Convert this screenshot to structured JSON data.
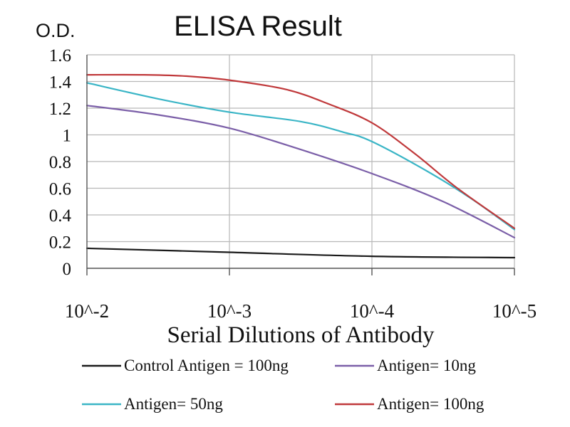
{
  "chart_data": {
    "type": "line",
    "title": "ELISA Result",
    "ylabel": "O.D.",
    "xlabel": "Serial Dilutions of Antibody",
    "x": [
      "10^-2",
      "10^-3",
      "10^-4",
      "10^-5"
    ],
    "x_scale": "log",
    "ylim": [
      0,
      1.6
    ],
    "yticks": [
      0,
      0.2,
      0.4,
      0.6,
      0.8,
      1,
      1.2,
      1.4,
      1.6
    ],
    "grid": true,
    "legend_position": "bottom",
    "series": [
      {
        "name": "Control Antigen = 100ng",
        "color": "#1a1a1a",
        "points": [
          [
            0,
            0.15
          ],
          [
            1,
            0.12
          ],
          [
            2,
            0.09
          ],
          [
            3,
            0.08
          ]
        ]
      },
      {
        "name": "Antigen= 10ng",
        "color": "#7b5fa8",
        "points": [
          [
            0,
            1.22
          ],
          [
            0.5,
            1.15
          ],
          [
            1,
            1.05
          ],
          [
            1.5,
            0.89
          ],
          [
            2,
            0.71
          ],
          [
            2.5,
            0.5
          ],
          [
            3,
            0.23
          ]
        ]
      },
      {
        "name": "Antigen= 50ng",
        "color": "#3ab5c6",
        "points": [
          [
            0,
            1.39
          ],
          [
            0.5,
            1.27
          ],
          [
            1,
            1.17
          ],
          [
            1.5,
            1.1
          ],
          [
            1.8,
            1.02
          ],
          [
            2,
            0.95
          ],
          [
            2.4,
            0.72
          ],
          [
            2.7,
            0.52
          ],
          [
            3,
            0.29
          ]
        ]
      },
      {
        "name": "Antigen= 100ng",
        "color": "#c0393b",
        "points": [
          [
            0,
            1.45
          ],
          [
            0.4,
            1.45
          ],
          [
            0.7,
            1.44
          ],
          [
            1,
            1.41
          ],
          [
            1.4,
            1.34
          ],
          [
            1.7,
            1.23
          ],
          [
            2,
            1.09
          ],
          [
            2.3,
            0.86
          ],
          [
            2.6,
            0.6
          ],
          [
            3,
            0.3
          ]
        ]
      }
    ]
  }
}
